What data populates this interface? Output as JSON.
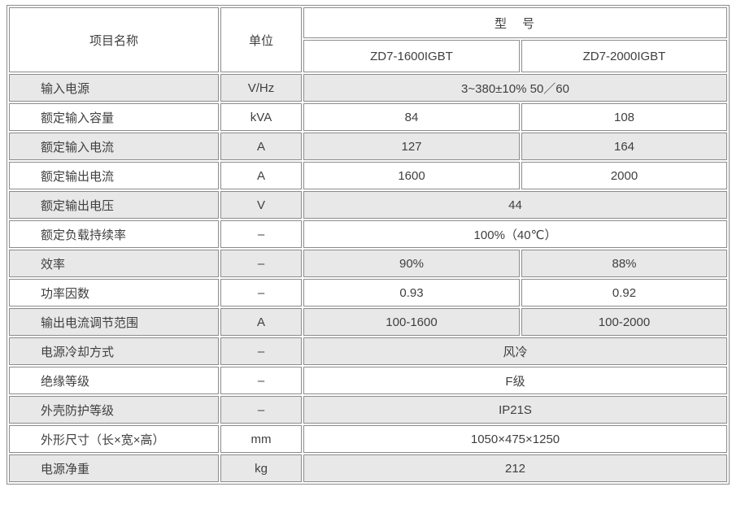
{
  "header": {
    "item_label": "项目名称",
    "unit_label": "单位",
    "model_label": "型　号",
    "models": [
      "ZD7-1600IGBT",
      "ZD7-2000IGBT"
    ]
  },
  "colors": {
    "shaded_row": "#e8e8e8",
    "border": "#8c8c8c",
    "text": "#3f3f3f",
    "background": "#ffffff"
  },
  "rows": [
    {
      "label": "输入电源",
      "unit": "V/Hz",
      "values": [
        "3~380±10% 50／60"
      ],
      "span": true,
      "shaded": true
    },
    {
      "label": "额定输入容量",
      "unit": "kVA",
      "values": [
        "84",
        "108"
      ],
      "span": false,
      "shaded": false
    },
    {
      "label": "额定输入电流",
      "unit": "A",
      "values": [
        "127",
        "164"
      ],
      "span": false,
      "shaded": true
    },
    {
      "label": "额定输出电流",
      "unit": "A",
      "values": [
        "1600",
        "2000"
      ],
      "span": false,
      "shaded": false
    },
    {
      "label": "额定输出电压",
      "unit": "V",
      "values": [
        "44"
      ],
      "span": true,
      "shaded": true
    },
    {
      "label": "额定负载持续率",
      "unit": "–",
      "values": [
        "100%（40℃）"
      ],
      "span": true,
      "shaded": false
    },
    {
      "label": "效率",
      "unit": "–",
      "values": [
        "90%",
        "88%"
      ],
      "span": false,
      "shaded": true
    },
    {
      "label": "功率因数",
      "unit": "–",
      "values": [
        "0.93",
        "0.92"
      ],
      "span": false,
      "shaded": false
    },
    {
      "label": "输出电流调节范围",
      "unit": "A",
      "values": [
        "100-1600",
        "100-2000"
      ],
      "span": false,
      "shaded": true
    },
    {
      "label": "电源冷却方式",
      "unit": "–",
      "values": [
        "风冷"
      ],
      "span": true,
      "shaded": true
    },
    {
      "label": "绝缘等级",
      "unit": "–",
      "values": [
        "F级"
      ],
      "span": true,
      "shaded": false
    },
    {
      "label": "外壳防护等级",
      "unit": "–",
      "values": [
        "IP21S"
      ],
      "span": true,
      "shaded": true
    },
    {
      "label": "外形尺寸（长×宽×高）",
      "unit": "mm",
      "values": [
        "1050×475×1250"
      ],
      "span": true,
      "shaded": false
    },
    {
      "label": "电源净重",
      "unit": "kg",
      "values": [
        "212"
      ],
      "span": true,
      "shaded": true
    }
  ]
}
